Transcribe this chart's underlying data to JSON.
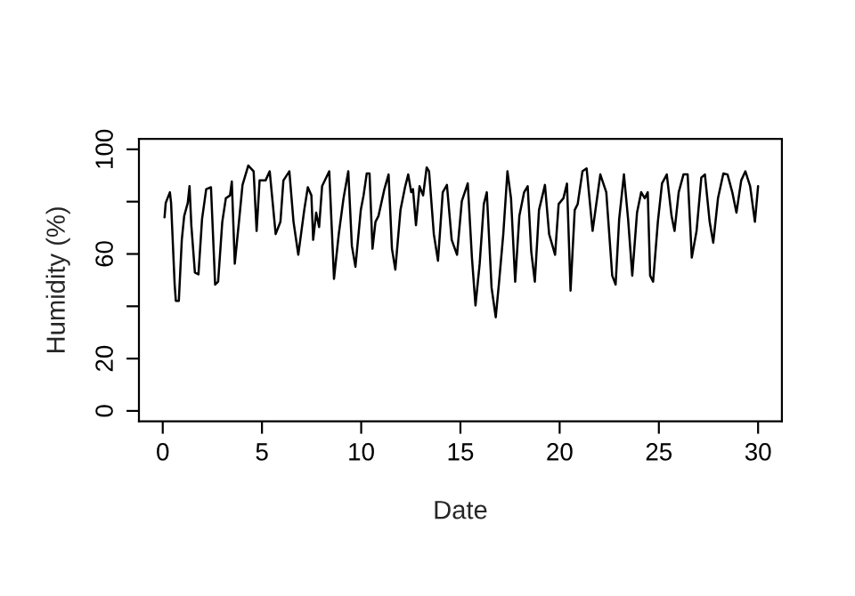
{
  "chart_data": {
    "type": "line",
    "xlabel": "Date",
    "ylabel": "Humidity (%)",
    "x": [
      0.09,
      0.15,
      0.36,
      0.42,
      0.6,
      0.66,
      0.81,
      0.96,
      1.08,
      1.26,
      1.35,
      1.44,
      1.62,
      1.8,
      1.98,
      2.19,
      2.43,
      2.64,
      2.79,
      3.0,
      3.18,
      3.39,
      3.48,
      3.63,
      3.84,
      4.02,
      4.31,
      4.58,
      4.73,
      4.88,
      5.18,
      5.39,
      5.69,
      5.93,
      6.08,
      6.38,
      6.59,
      6.83,
      7.13,
      7.31,
      7.49,
      7.58,
      7.73,
      7.88,
      8.03,
      8.39,
      8.63,
      8.87,
      9.11,
      9.35,
      9.53,
      9.71,
      9.98,
      10.12,
      10.28,
      10.42,
      10.57,
      10.72,
      10.87,
      11.17,
      11.38,
      11.55,
      11.72,
      11.98,
      12.22,
      12.37,
      12.52,
      12.61,
      12.76,
      12.94,
      13.12,
      13.3,
      13.42,
      13.66,
      13.87,
      14.11,
      14.32,
      14.56,
      14.83,
      15.07,
      15.37,
      15.58,
      15.76,
      15.97,
      16.18,
      16.33,
      16.57,
      16.78,
      16.95,
      17.16,
      17.37,
      17.55,
      17.76,
      17.97,
      18.21,
      18.39,
      18.57,
      18.75,
      18.96,
      19.26,
      19.47,
      19.77,
      19.95,
      20.19,
      20.37,
      20.55,
      20.76,
      20.91,
      21.15,
      21.36,
      21.66,
      22.05,
      22.35,
      22.65,
      22.82,
      23.0,
      23.24,
      23.45,
      23.66,
      23.9,
      24.11,
      24.29,
      24.44,
      24.56,
      24.71,
      24.95,
      25.16,
      25.4,
      25.64,
      25.79,
      26.0,
      26.24,
      26.45,
      26.66,
      26.9,
      27.14,
      27.32,
      27.56,
      27.74,
      27.98,
      28.25,
      28.46,
      28.7,
      28.91,
      29.15,
      29.36,
      29.6,
      29.84,
      30.0
    ],
    "series": [
      {
        "color": "#000000",
        "values": [
          74,
          79.5,
          83.6,
          79.5,
          48.3,
          42.1,
          42.1,
          65.4,
          74.5,
          79.5,
          85.9,
          71,
          52.9,
          52.2,
          73.3,
          84.8,
          85.5,
          48.3,
          49.4,
          72.3,
          81.3,
          82.4,
          87.7,
          56.3,
          72.3,
          86.4,
          93.8,
          91.6,
          68.8,
          88.1,
          88.1,
          91.6,
          67.6,
          72.3,
          88.1,
          91.6,
          72.3,
          59.7,
          76.8,
          85.5,
          82.4,
          65.4,
          75.8,
          70.3,
          85.9,
          91.6,
          50.5,
          67.6,
          81.3,
          91.6,
          63.1,
          55.1,
          76.8,
          82.4,
          90.8,
          90.8,
          62,
          72.3,
          74.5,
          84.8,
          90.4,
          62,
          54,
          76.8,
          85.9,
          90.4,
          83.6,
          84.8,
          71,
          85.9,
          82.4,
          93.1,
          91.6,
          67.6,
          57.4,
          83.6,
          86.4,
          65.4,
          59.7,
          80.2,
          87,
          58.6,
          40.3,
          56.2,
          79.1,
          83.6,
          47.1,
          35.8,
          49.4,
          67.6,
          91.6,
          81.3,
          49.4,
          74.5,
          83.6,
          85.9,
          60.9,
          49.4,
          76.8,
          86.4,
          67.6,
          59.7,
          79.1,
          81.3,
          86.9,
          46,
          76.8,
          79.1,
          91.6,
          92.7,
          68.8,
          90.4,
          83.6,
          51.7,
          48.3,
          73.3,
          90.4,
          73.3,
          51.7,
          75.8,
          83.6,
          81.3,
          83.6,
          51.7,
          49.4,
          72.3,
          87,
          90.4,
          74.5,
          68.8,
          83.6,
          90.4,
          90.4,
          58.6,
          68.8,
          89.2,
          90.4,
          72.3,
          64.3,
          81.3,
          90.8,
          90.4,
          83.6,
          75.8,
          88.1,
          91.6,
          85.9,
          72.3,
          85.9
        ]
      }
    ],
    "xlim": [
      -1.2,
      31.2
    ],
    "xticks": [
      0,
      5,
      10,
      15,
      20,
      25,
      30
    ],
    "ylim": [
      -4,
      104
    ],
    "yticks": [
      0,
      20,
      {
        "value": 40,
        "label": null
      },
      60,
      {
        "value": 80,
        "label": null
      },
      100
    ],
    "grid": false,
    "legend": false,
    "marker": "none",
    "line_style": "solid"
  }
}
